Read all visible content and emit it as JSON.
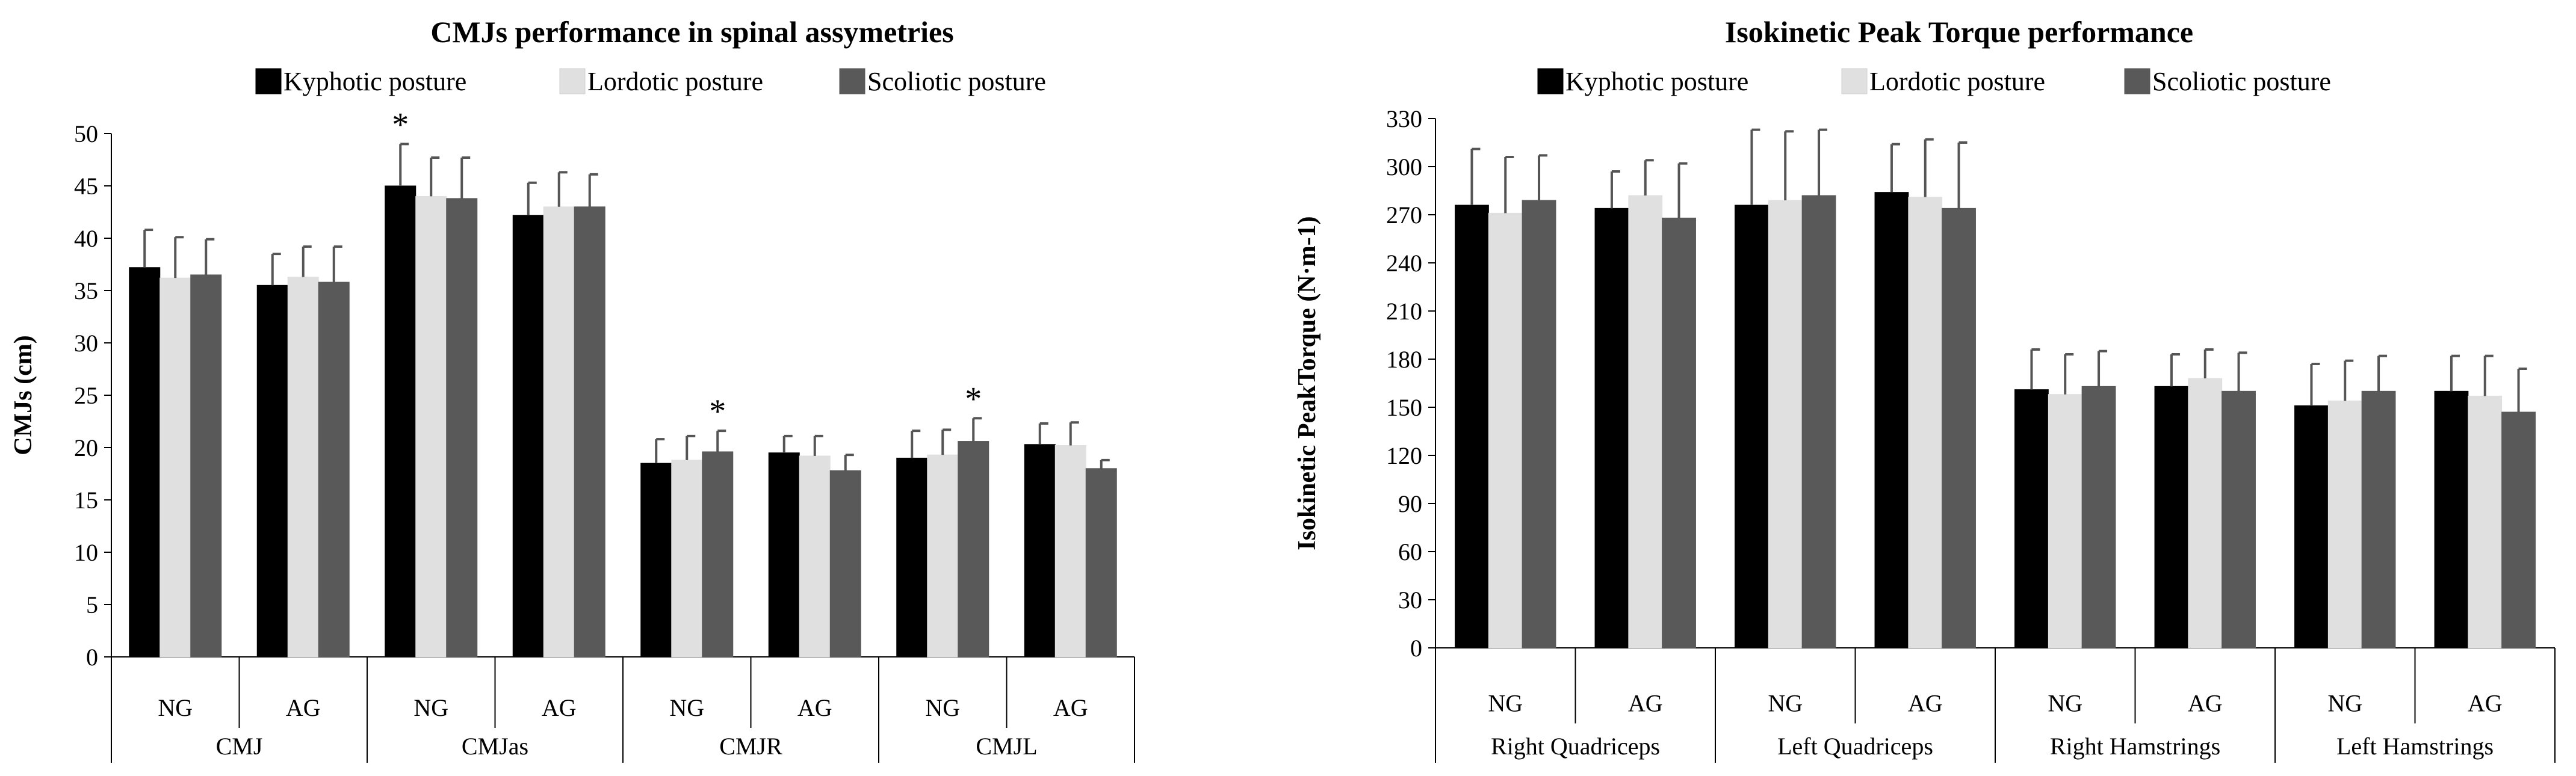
{
  "chart_data": [
    {
      "type": "bar",
      "title": "CMJs performance  in spinal assymetries",
      "ylabel": "CMJs (cm)",
      "xlabel": "",
      "ylim": [
        0,
        50
      ],
      "yticks": [
        0,
        5,
        10,
        15,
        20,
        25,
        30,
        35,
        40,
        45,
        50
      ],
      "legend_position": "top",
      "grid": false,
      "groups": [
        "CMJ",
        "CMJas",
        "CMJR",
        "CMJL"
      ],
      "subgroups": [
        "NG",
        "AG"
      ],
      "categories": [
        "CMJ NG",
        "CMJ AG",
        "CMJas NG",
        "CMJas AG",
        "CMJR NG",
        "CMJR AG",
        "CMJL NG",
        "CMJL AG"
      ],
      "series": [
        {
          "name": "Kyphotic posture",
          "color": "#000000",
          "values": [
            37.2,
            35.5,
            45.0,
            42.2,
            18.5,
            19.5,
            19.0,
            20.3
          ],
          "errors": [
            3.6,
            3.0,
            4.0,
            3.1,
            2.3,
            1.6,
            2.6,
            2.0
          ]
        },
        {
          "name": "Lordotic posture",
          "color": "#e0e0e0",
          "values": [
            36.2,
            36.3,
            44.0,
            43.0,
            18.8,
            19.2,
            19.3,
            20.2
          ],
          "errors": [
            3.9,
            2.9,
            3.7,
            3.3,
            2.3,
            1.9,
            2.4,
            2.2
          ]
        },
        {
          "name": "Scoliotic posture",
          "color": "#595959",
          "values": [
            36.5,
            35.8,
            43.8,
            43.0,
            19.6,
            17.8,
            20.6,
            18.0
          ],
          "errors": [
            3.4,
            3.4,
            3.9,
            3.1,
            2.0,
            1.5,
            2.2,
            0.8
          ]
        }
      ],
      "annotations": [
        {
          "text": "*",
          "category": "CMJas NG",
          "series": "Kyphotic posture"
        },
        {
          "text": "*",
          "category": "CMJR NG",
          "series": "Scoliotic posture"
        },
        {
          "text": "*",
          "category": "CMJL NG",
          "series": "Scoliotic posture"
        }
      ]
    },
    {
      "type": "bar",
      "title": "Isokinetic Peak Torque performance",
      "ylabel": "Isokinetic PeakTorque (N·m-1)",
      "xlabel": "",
      "ylim": [
        0,
        330
      ],
      "yticks": [
        0,
        30,
        60,
        90,
        120,
        150,
        180,
        210,
        240,
        270,
        300,
        330
      ],
      "legend_position": "top",
      "grid": false,
      "groups": [
        "Right Quadriceps",
        "Left Quadriceps",
        "Right Hamstrings",
        "Left Hamstrings"
      ],
      "subgroups": [
        "NG",
        "AG"
      ],
      "categories": [
        "Right Quadriceps NG",
        "Right Quadriceps AG",
        "Left Quadriceps NG",
        "Left Quadriceps AG",
        "Right Hamstrings NG",
        "Right Hamstrings AG",
        "Left Hamstrings NG",
        "Left Hamstrings AG"
      ],
      "series": [
        {
          "name": "Kyphotic posture",
          "color": "#000000",
          "values": [
            276,
            274,
            276,
            284,
            161,
            163,
            151,
            160
          ],
          "errors": [
            35,
            23,
            47,
            30,
            25,
            20,
            26,
            22
          ]
        },
        {
          "name": "Lordotic posture",
          "color": "#e0e0e0",
          "values": [
            271,
            282,
            279,
            281,
            158,
            168,
            154,
            157
          ],
          "errors": [
            35,
            22,
            43,
            36,
            25,
            18,
            25,
            25
          ]
        },
        {
          "name": "Scoliotic posture",
          "color": "#595959",
          "values": [
            279,
            268,
            282,
            274,
            163,
            160,
            160,
            147
          ],
          "errors": [
            28,
            34,
            41,
            41,
            22,
            24,
            22,
            27
          ]
        }
      ],
      "annotations": []
    }
  ]
}
